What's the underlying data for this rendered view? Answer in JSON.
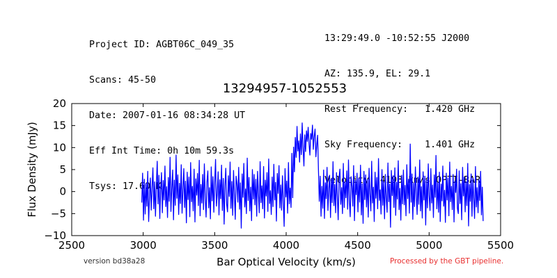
{
  "header": {
    "left": [
      "Project ID: AGBT06C_049_35",
      "Scans: 45-50",
      "Date: 2007-01-16 08:34:28 UT",
      "Eff Int Time: 0h 10m 59.3s",
      "Tsys: 17.60 K"
    ],
    "right": [
      "13:29:49.0 -10:52:55 J2000",
      "AZ: 135.9, EL: 29.1",
      "Rest Frequency:   1.420 GHz",
      "Sky Frequency:    1.401 GHz",
      "Velocity: 4198 km/s OPTI-BAR"
    ]
  },
  "footer": {
    "version": "version bd38a28",
    "pipeline": "Processed by the GBT pipeline."
  },
  "colors": {
    "line": "#0000ff",
    "pipeline_text": "#e83030"
  },
  "chart_data": {
    "type": "line",
    "title": "13294957-1052553",
    "xlabel": "Bar Optical Velocity (km/s)",
    "ylabel": "Flux Density (mJy)",
    "xlim": [
      2500,
      5500
    ],
    "ylim": [
      -10,
      20
    ],
    "xticks": [
      2500,
      3000,
      3500,
      4000,
      4500,
      5000,
      5500
    ],
    "yticks": [
      -10,
      -5,
      0,
      5,
      10,
      15,
      20
    ],
    "grid": false,
    "series": [
      {
        "x_start": 2990,
        "x_step": 6,
        "values": [
          -2.5,
          4.2,
          -6.5,
          2.8,
          -5.1,
          1.9,
          -3.3,
          4.6,
          -6.8,
          -1.2,
          3.1,
          -4.2,
          0.8,
          5.4,
          -3.9,
          2.2,
          -5.6,
          1.5,
          6.9,
          -2.8,
          3.7,
          -6.1,
          0.4,
          4.3,
          -4.8,
          2.5,
          -1.9,
          5.8,
          -3.4,
          1.1,
          -5.9,
          3.2,
          -2.2,
          7.8,
          -4.5,
          0.7,
          4.9,
          -6.4,
          2.6,
          -3.1,
          8.3,
          -1.5,
          3.8,
          -5.2,
          1.9,
          -2.7,
          6.1,
          -4.9,
          0.3,
          5.2,
          -3.6,
          2.4,
          -7.1,
          4.4,
          -1.8,
          3.3,
          -5.7,
          6.6,
          -2.3,
          1.2,
          -4.4,
          5.1,
          -6.9,
          2.9,
          -0.8,
          4.1,
          -3.2,
          7.1,
          -5.5,
          1.6,
          -2.6,
          3.9,
          -4.1,
          6.3,
          -1.4,
          -5.8,
          2.1,
          4.7,
          -3.7,
          0.9,
          -6.2,
          5.6,
          -2.1,
          3.4,
          -4.7,
          1.8,
          7.3,
          -3.3,
          -0.6,
          4.5,
          -5.3,
          2.7,
          -1.6,
          6.0,
          -4.3,
          3.0,
          -7.4,
          1.4,
          5.3,
          -2.9,
          -4.6,
          3.6,
          -1.1,
          6.7,
          -3.8,
          2.3,
          -5.4,
          4.8,
          -0.9,
          -6.3,
          3.5,
          1.7,
          -2.4,
          5.5,
          -4.0,
          2.0,
          -8.3,
          4.0,
          -1.3,
          6.4,
          -3.5,
          0.6,
          -5.0,
          7.6,
          -2.0,
          3.2,
          -4.4,
          1.0,
          -6.6,
          5.0,
          -1.7,
          3.9,
          -3.0,
          2.8,
          -5.6,
          4.6,
          -0.5,
          -4.8,
          6.8,
          -2.5,
          1.3,
          -3.9,
          5.7,
          -6.0,
          2.6,
          -1.0,
          4.3,
          -4.5,
          7.4,
          -2.7,
          0.2,
          -5.2,
          3.3,
          -3.4,
          6.2,
          -1.9,
          2.1,
          -6.7,
          4.1,
          -0.4,
          5.9,
          -3.7,
          1.5,
          -4.2,
          3.6,
          -2.2,
          -7.9,
          5.2,
          -1.2,
          2.4,
          -4.9,
          6.6,
          -2.8,
          0.8,
          -3.6,
          8.7,
          -1.4,
          10.1,
          4.5,
          12.3,
          7.8,
          14.8,
          9.2,
          11.5,
          6.7,
          13.1,
          8.4,
          15.6,
          10.2,
          5.8,
          12.9,
          9.1,
          13.8,
          11.4,
          14.6,
          10.8,
          8.3,
          13.2,
          11.9,
          15.1,
          9.6,
          12.4,
          14.2,
          7.9,
          10.5,
          12.8,
          4.8,
          -2.2,
          3.5,
          -5.6,
          1.2,
          -3.8,
          4.9,
          -6.1,
          2.0,
          -1.6,
          5.5,
          -4.3,
          0.5,
          3.7,
          -5.9,
          2.9,
          -2.5,
          6.8,
          -3.2,
          1.6,
          -4.8,
          4.3,
          -1.1,
          -6.4,
          3.1,
          5.1,
          -2.9,
          0.9,
          -5.0,
          6.4,
          -3.6,
          2.2,
          -1.4,
          4.7,
          -4.0,
          7.2,
          -2.1,
          -5.7,
          3.4,
          1.3,
          -3.3,
          5.9,
          -6.6,
          2.5,
          -0.7,
          4.2,
          -4.6,
          3.0,
          -2.4,
          6.0,
          -5.3,
          1.8,
          -7.2,
          4.6,
          -1.8,
          3.8,
          -3.5,
          2.7,
          -5.8,
          5.3,
          -0.3,
          -4.4,
          6.9,
          -2.6,
          1.0,
          -6.8,
          4.4,
          -1.5,
          3.2,
          -3.9,
          7.5,
          -2.0,
          0.4,
          -5.1,
          5.0,
          -3.1,
          2.3,
          -6.2,
          3.9,
          -1.2,
          -4.7,
          6.5,
          -2.3,
          1.7,
          -8.1,
          4.8,
          -0.9,
          3.6,
          -3.6,
          5.4,
          -5.4,
          2.1,
          -1.7,
          7.0,
          -4.1,
          0.7,
          -6.5,
          3.7,
          -2.8,
          4.9,
          -3.0,
          1.4,
          -5.5,
          6.1,
          -1.6,
          2.8,
          -4.9,
          10.8,
          -2.4,
          4.0,
          -6.3,
          1.9,
          -3.4,
          5.6,
          -0.6,
          -5.2,
          3.3,
          -2.9,
          7.2,
          -4.4,
          1.1,
          -6.0,
          4.5,
          -1.9,
          3.5,
          -7.6,
          2.6,
          -3.7,
          6.3,
          -0.8,
          -4.3,
          5.2,
          -2.6,
          1.5,
          -5.9,
          3.8,
          -1.3,
          8.2,
          -3.9,
          2.0,
          -4.7,
          4.4,
          -6.8,
          1.7,
          -2.1,
          5.8,
          -3.3,
          0.3,
          -7.0,
          4.2,
          -1.9,
          3.1,
          -5.5,
          6.7,
          -2.3,
          1.2,
          -4.1,
          3.9,
          -6.9,
          2.4,
          -0.2,
          5.1,
          -3.8,
          -5.0,
          4.7,
          -2.7,
          1.8,
          -6.4,
          5.5,
          -1.0,
          3.3,
          -4.6,
          2.2,
          -3.2,
          6.4,
          -7.8,
          1.6,
          -2.2,
          4.0,
          -5.6,
          3.0,
          -1.5,
          -6.1,
          5.7,
          -3.5,
          0.9,
          -4.8,
          2.7,
          -2.0,
          4.6,
          -5.3,
          1.0,
          -6.7
        ]
      }
    ]
  }
}
